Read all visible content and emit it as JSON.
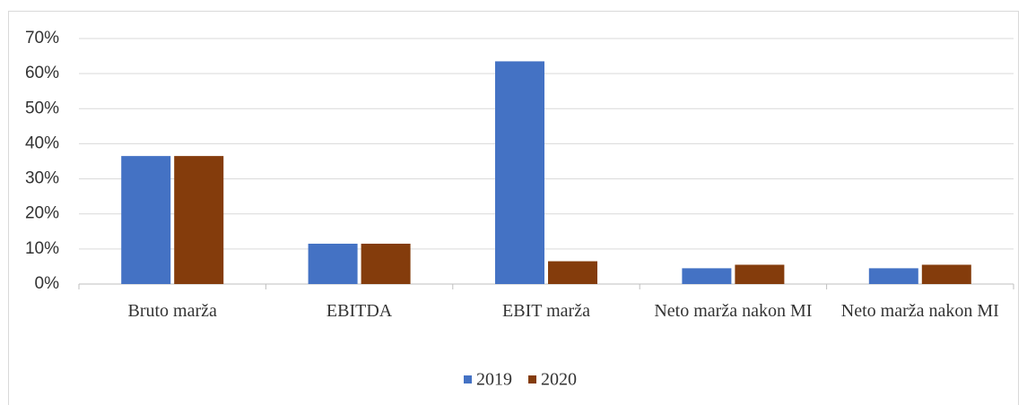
{
  "chart_data": {
    "type": "bar",
    "categories": [
      "Bruto marža",
      "EBITDA",
      "EBIT marža",
      "Neto marža nakon MI",
      "Neto marža nakon MI"
    ],
    "series": [
      {
        "name": "2019",
        "color": "#4472c4",
        "values": [
          36.5,
          11.5,
          63.5,
          4.5,
          4.5
        ]
      },
      {
        "name": "2020",
        "color": "#843c0c",
        "values": [
          36.5,
          11.5,
          6.5,
          5.5,
          5.5
        ]
      }
    ],
    "ylim": [
      0,
      70
    ],
    "yticks": [
      {
        "value": 0,
        "label": "0%"
      },
      {
        "value": 10,
        "label": "10%"
      },
      {
        "value": 20,
        "label": "20%"
      },
      {
        "value": 30,
        "label": "30%"
      },
      {
        "value": 40,
        "label": "40%"
      },
      {
        "value": 50,
        "label": "50%"
      },
      {
        "value": 60,
        "label": "60%"
      },
      {
        "value": 70,
        "label": "70%"
      }
    ],
    "grid": true,
    "legend": "bottom"
  }
}
